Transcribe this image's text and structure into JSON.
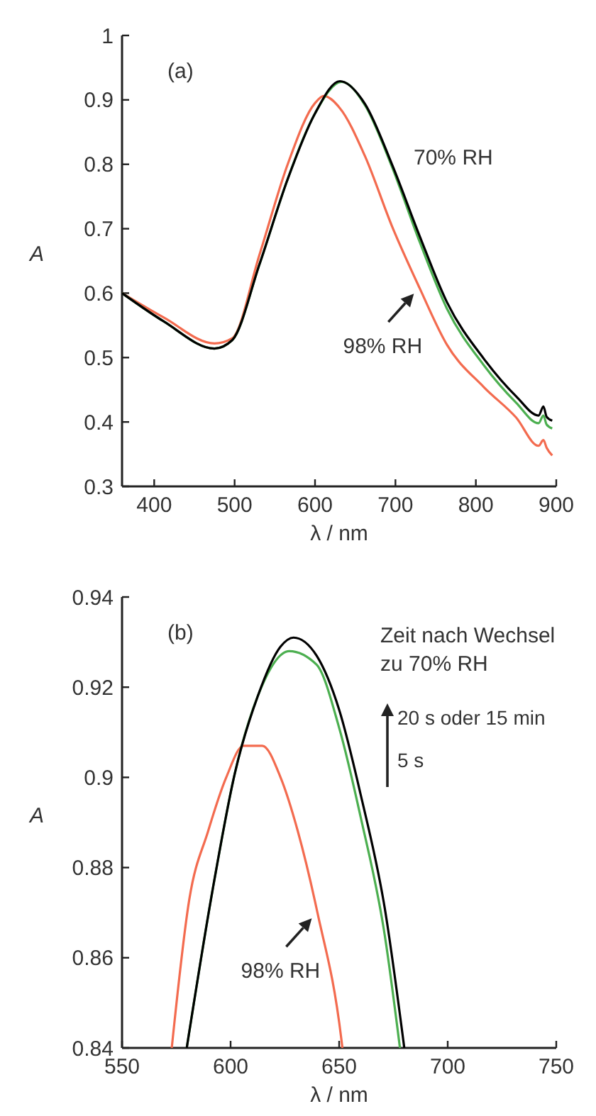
{
  "chart_data": [
    {
      "type": "line",
      "title": "(a)",
      "xlabel": "λ / nm",
      "ylabel": "A",
      "xlim": [
        360,
        900
      ],
      "xticks": [
        400,
        500,
        600,
        700,
        800,
        900
      ],
      "ylim": [
        0.3,
        1
      ],
      "yticks": [
        0.3,
        0.4,
        0.5,
        0.6,
        0.7,
        0.8,
        0.9,
        1
      ],
      "grid": false,
      "marker": "none",
      "line_style": "solid",
      "annotations": [
        "70% RH",
        {
          "text": "98% RH",
          "x": 730,
          "y": 0.608
        }
      ],
      "series": [
        {
          "color": "#f36b4f",
          "x": [
            360,
            412,
            475,
            497,
            531,
            566,
            600,
            611,
            631,
            662,
            696,
            730,
            764,
            810,
            850,
            878,
            884,
            888,
            895
          ],
          "values": [
            0.6,
            0.562,
            0.522,
            0.53,
            0.66,
            0.8,
            0.895,
            0.906,
            0.887,
            0.813,
            0.703,
            0.608,
            0.52,
            0.454,
            0.407,
            0.363,
            0.372,
            0.36,
            0.348
          ]
        },
        {
          "color": "#4caf50",
          "x": [
            360,
            412,
            475,
            497,
            531,
            566,
            600,
            633,
            662,
            696,
            730,
            764,
            810,
            850,
            878,
            884,
            888,
            895
          ],
          "values": [
            0.6,
            0.556,
            0.514,
            0.527,
            0.645,
            0.777,
            0.879,
            0.928,
            0.892,
            0.795,
            0.68,
            0.576,
            0.488,
            0.43,
            0.398,
            0.41,
            0.396,
            0.39
          ]
        },
        {
          "color": "#000000",
          "x": [
            360,
            412,
            475,
            497,
            531,
            566,
            600,
            631,
            662,
            696,
            730,
            764,
            810,
            850,
            878,
            884,
            888,
            895
          ],
          "values": [
            0.6,
            0.556,
            0.514,
            0.527,
            0.645,
            0.777,
            0.879,
            0.929,
            0.894,
            0.799,
            0.689,
            0.586,
            0.498,
            0.44,
            0.41,
            0.424,
            0.408,
            0.402
          ]
        }
      ]
    },
    {
      "type": "line",
      "title": "(b)",
      "xlabel": "λ / nm",
      "ylabel": "A",
      "xlim": [
        550,
        750
      ],
      "xticks": [
        550,
        600,
        650,
        700,
        750
      ],
      "ylim": [
        0.84,
        0.94
      ],
      "yticks": [
        0.84,
        0.86,
        0.88,
        {
          "value": 0.9,
          "label": "0.9"
        },
        0.92,
        0.94
      ],
      "grid": false,
      "marker": "none",
      "line_style": "solid",
      "annotations": [
        "Zeit nach Wechsel zu 70% RH",
        "20 s oder 15 min",
        "5 s",
        {
          "text": "98% RH",
          "x": 640,
          "y": 0.87
        }
      ],
      "series": [
        {
          "color": "#f36b4f",
          "x": [
            572.9,
            581,
            589.6,
            598,
            606,
            614.6,
            623,
            631,
            640,
            651,
            651.5
          ],
          "values": [
            0.84,
            0.873,
            0.888,
            0.9,
            0.907,
            0.907,
            0.9,
            0.888,
            0.87,
            0.842,
            0.84
          ]
        },
        {
          "color": "#4caf50",
          "x": [
            579.8,
            591.7,
            602,
            612.5,
            627,
            639.6,
            650,
            660,
            671,
            678
          ],
          "values": [
            0.84,
            0.875,
            0.901,
            0.918,
            0.928,
            0.925,
            0.911,
            0.891,
            0.865,
            0.84
          ]
        },
        {
          "color": "#000000",
          "x": [
            579.8,
            591.7,
            602,
            612.5,
            623,
            629,
            639.6,
            650,
            660,
            671,
            680
          ],
          "values": [
            0.84,
            0.875,
            0.901,
            0.918,
            0.929,
            0.931,
            0.927,
            0.915,
            0.896,
            0.871,
            0.84
          ]
        }
      ]
    }
  ]
}
